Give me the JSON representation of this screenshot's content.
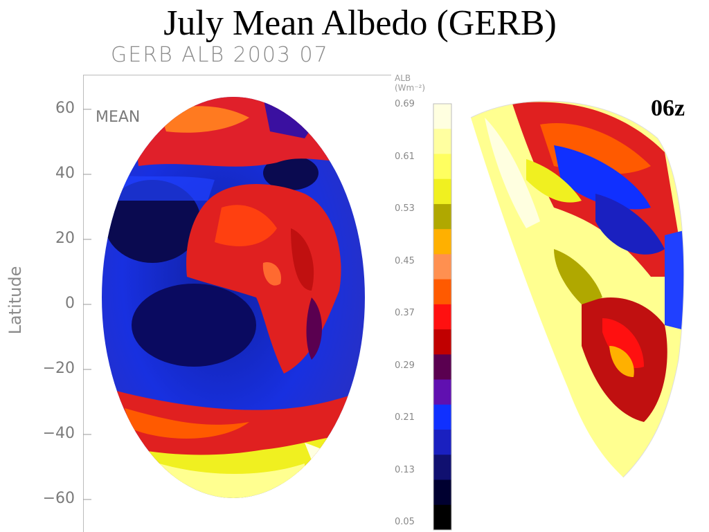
{
  "title": "July Mean Albedo (GERB)",
  "subtitle": "GERB ALB 2003 07",
  "panel_label": "MEAN",
  "time_label": "06z",
  "y_axis": {
    "label": "Latitude",
    "ticks": [
      "60",
      "40",
      "20",
      "0",
      "−20",
      "−40",
      "−60"
    ]
  },
  "colorbar": {
    "title_line1": "ALB",
    "title_line2": "(Wm⁻²)",
    "tick_labels": [
      "0.69",
      "0.61",
      "0.53",
      "0.45",
      "0.37",
      "0.29",
      "0.21",
      "0.13",
      "0.05"
    ],
    "colors": [
      "#ffffe0",
      "#ffffa0",
      "#ffff60",
      "#f0f020",
      "#b0a800",
      "#ffb000",
      "#ff9050",
      "#ff5a00",
      "#ff1010",
      "#c00000",
      "#5a0050",
      "#6010b0",
      "#1030ff",
      "#1a20c0",
      "#101070",
      "#000030",
      "#000000"
    ]
  }
}
